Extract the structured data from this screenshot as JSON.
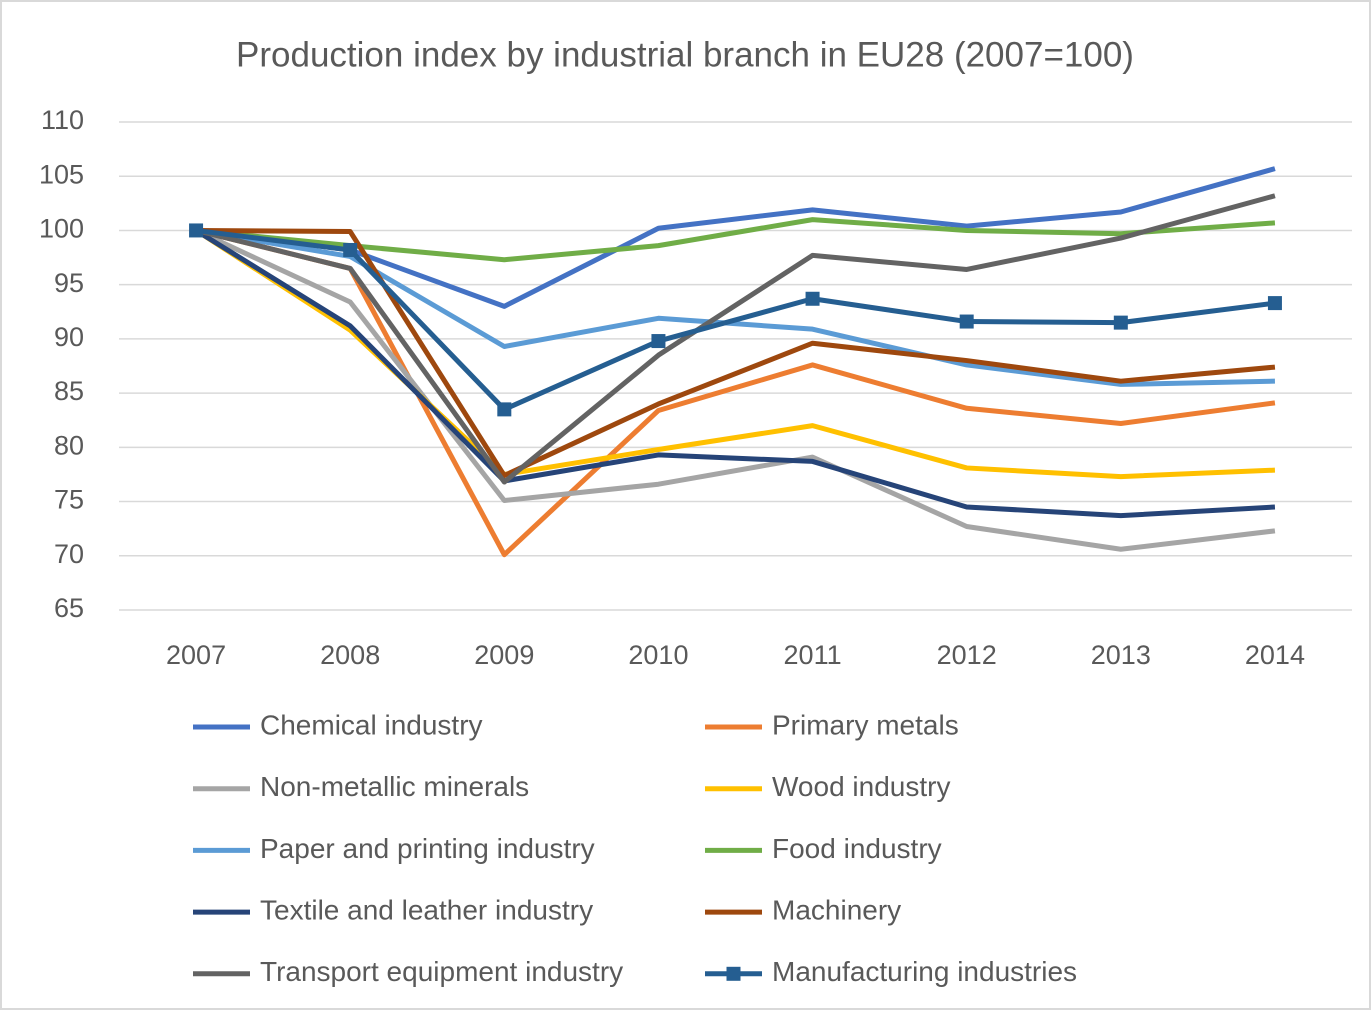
{
  "chart_data": {
    "type": "line",
    "title": "Production index by industrial branch in EU28 (2007=100)",
    "categories": [
      "2007",
      "2008",
      "2009",
      "2010",
      "2011",
      "2012",
      "2013",
      "2014"
    ],
    "ylim": [
      65,
      110
    ],
    "yticks": [
      65,
      70,
      75,
      80,
      85,
      90,
      95,
      100,
      105,
      110
    ],
    "grid": true,
    "legend": "bottom",
    "series": [
      {
        "name": "Chemical industry",
        "color": "#4472c4",
        "values": [
          100,
          98.2,
          93.0,
          100.2,
          101.9,
          100.4,
          101.7,
          105.7
        ]
      },
      {
        "name": "Primary metals",
        "color": "#ed7d31",
        "values": [
          100,
          96.5,
          70.1,
          83.4,
          87.6,
          83.6,
          82.2,
          84.1
        ]
      },
      {
        "name": "Non-metallic minerals",
        "color": "#a5a5a5",
        "values": [
          100,
          93.4,
          75.1,
          76.6,
          79.1,
          72.7,
          70.6,
          72.3
        ]
      },
      {
        "name": "Wood industry",
        "color": "#ffc000",
        "values": [
          100,
          90.8,
          77.5,
          79.8,
          82.0,
          78.1,
          77.3,
          77.9
        ]
      },
      {
        "name": "Paper and printing industry",
        "color": "#5b9bd5",
        "values": [
          100,
          97.6,
          89.3,
          91.9,
          90.9,
          87.6,
          85.8,
          86.1
        ]
      },
      {
        "name": "Food industry",
        "color": "#70ad47",
        "values": [
          100,
          98.6,
          97.3,
          98.6,
          101.0,
          100.0,
          99.7,
          100.7
        ]
      },
      {
        "name": "Textile and leather industry",
        "color": "#264478",
        "values": [
          100,
          91.2,
          76.9,
          79.3,
          78.7,
          74.5,
          73.7,
          74.5
        ]
      },
      {
        "name": "Machinery",
        "color": "#9e480e",
        "values": [
          100,
          99.9,
          77.4,
          84.0,
          89.6,
          88.0,
          86.1,
          87.4
        ]
      },
      {
        "name": "Transport equipment industry",
        "color": "#636363",
        "values": [
          100,
          96.5,
          76.8,
          88.5,
          97.7,
          96.4,
          99.3,
          103.2
        ]
      },
      {
        "name": "Manufacturing industries",
        "color": "#255e91",
        "marker": "square",
        "values": [
          100,
          98.2,
          83.5,
          89.8,
          93.7,
          91.6,
          91.5,
          93.3
        ]
      }
    ]
  }
}
